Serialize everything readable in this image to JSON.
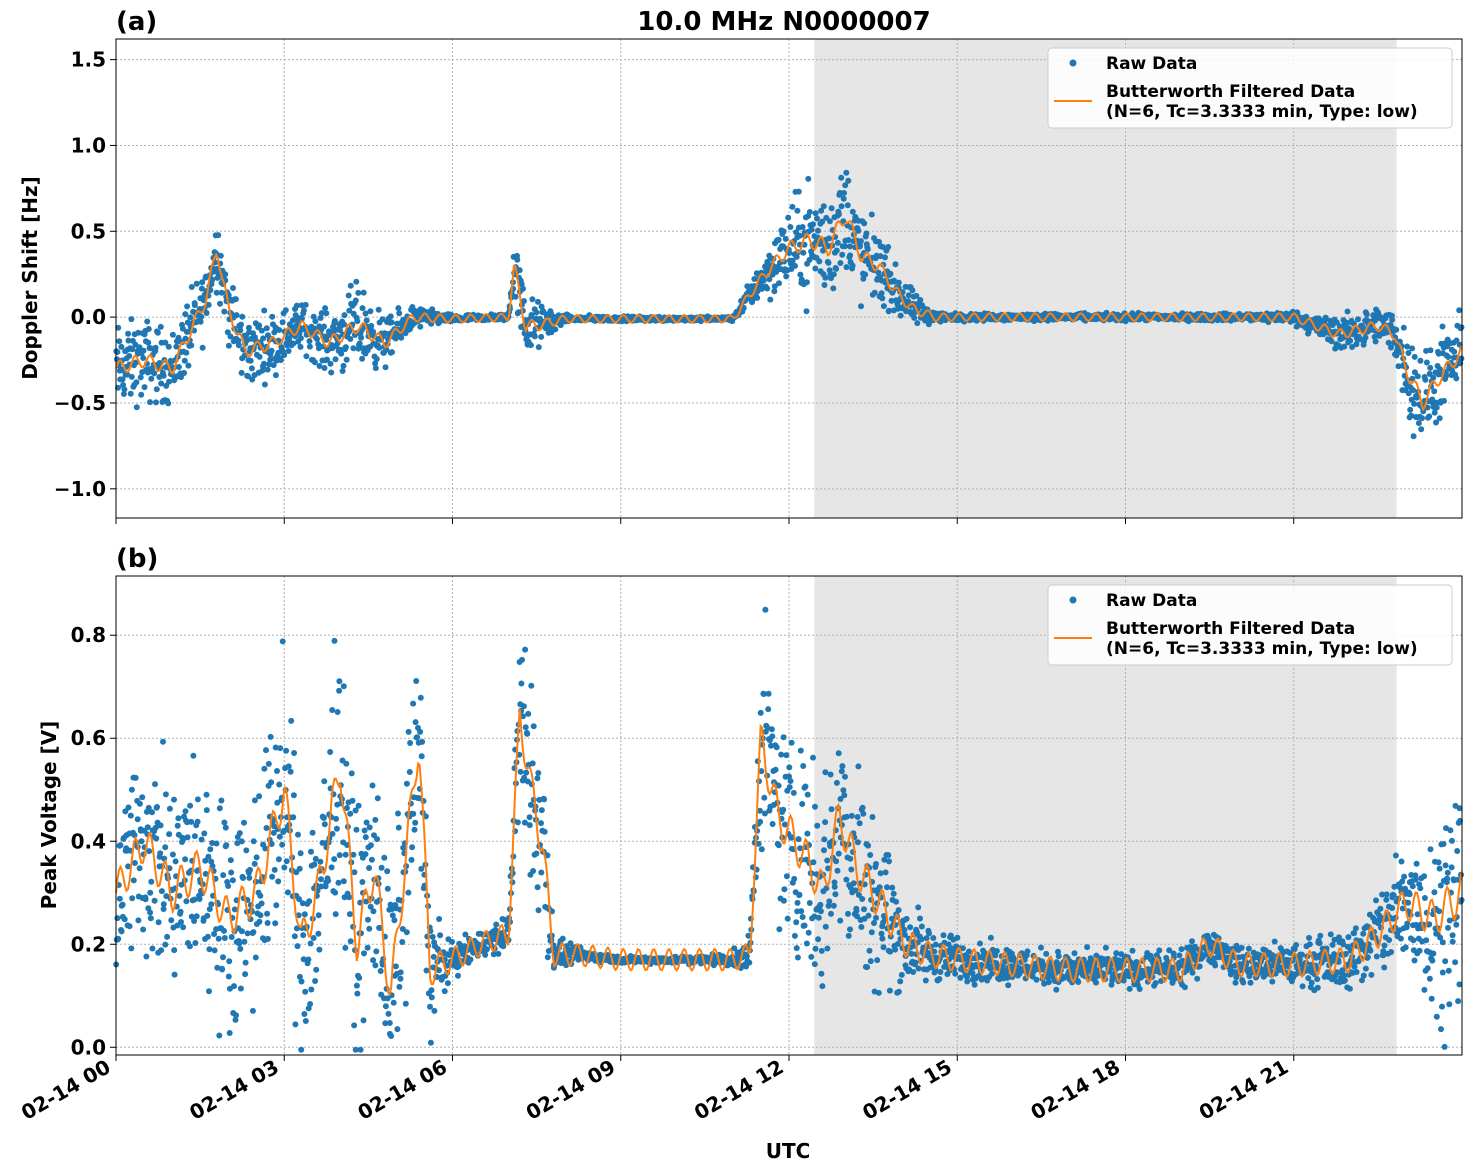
{
  "figure": {
    "title": "10.0 MHz N0000007",
    "xlabel": "UTC",
    "colors": {
      "raw": "#1f77b4",
      "filtered": "#ff7f0e",
      "shade": "#e6e6e6",
      "grid": "#b0b0b0"
    }
  },
  "chart_data": [
    {
      "panel_label": "(a)",
      "type": "scatter",
      "ylabel": "Doppler Shift [Hz]",
      "xlim": [
        "02-14 00:00",
        "02-15 00:00"
      ],
      "ylim": [
        -1.17,
        1.62
      ],
      "yticks": [
        "−1.0",
        "−0.5",
        "0.0",
        "0.5",
        "1.0",
        "1.5"
      ],
      "ytick_values": [
        -1.0,
        -0.5,
        0.0,
        0.5,
        1.0,
        1.5
      ],
      "xticks": [
        "02-14 00",
        "02-14 03",
        "02-14 06",
        "02-14 09",
        "02-14 12",
        "02-14 15",
        "02-14 18",
        "02-14 21"
      ],
      "xtick_hours": [
        0,
        3,
        6,
        9,
        12,
        15,
        18,
        21
      ],
      "shaded_span_utc": [
        "12:27",
        "22:50"
      ],
      "grid": true,
      "legend_position": "top-right",
      "legend": [
        "Raw Data",
        "Butterworth Filtered Data",
        "(N=6, Tc=3.3333 min, Type: low)"
      ],
      "series": [
        {
          "name": "Butterworth Filtered Data",
          "x_hours": [
            0,
            0.5,
            1,
            1.3,
            1.6,
            1.8,
            2.0,
            2.3,
            2.8,
            3.3,
            3.8,
            4.3,
            4.8,
            5.3,
            6,
            7,
            7.1,
            7.3,
            7.5,
            8,
            9,
            10,
            11,
            11.45,
            11.7,
            12.0,
            12.4,
            12.7,
            13.0,
            13.3,
            13.6,
            13.9,
            14.2,
            14.6,
            15,
            16,
            18,
            20,
            21,
            21.8,
            22.5,
            22.8,
            23.0,
            23.3,
            23.6,
            24
          ],
          "y": [
            -0.3,
            -0.25,
            -0.3,
            -0.1,
            0.1,
            0.4,
            0.05,
            -0.2,
            -0.15,
            -0.05,
            -0.15,
            -0.05,
            -0.15,
            0.0,
            -0.01,
            0.0,
            0.3,
            -0.05,
            -0.05,
            -0.01,
            -0.01,
            -0.01,
            -0.01,
            0.2,
            0.3,
            0.4,
            0.45,
            0.4,
            0.6,
            0.35,
            0.3,
            0.15,
            0.05,
            0.0,
            0.0,
            0.0,
            0.0,
            0.0,
            0.0,
            -0.1,
            -0.05,
            -0.1,
            -0.3,
            -0.5,
            -0.35,
            -0.2
          ]
        },
        {
          "name": "Raw Data",
          "x_hours": [
            0,
            0.5,
            1,
            1.3,
            1.6,
            1.8,
            2.0,
            2.3,
            2.8,
            3.3,
            3.8,
            4.3,
            4.8,
            5.3,
            6,
            7,
            7.1,
            7.3,
            7.5,
            8,
            9,
            10,
            11,
            11.45,
            11.7,
            12.0,
            12.4,
            12.7,
            13.0,
            13.3,
            13.6,
            13.9,
            14.2,
            14.6,
            15,
            16,
            18,
            20,
            21,
            21.8,
            22.5,
            22.8,
            23.0,
            23.3,
            23.6,
            24
          ],
          "y_spread": [
            0.35,
            0.35,
            0.3,
            0.3,
            0.3,
            0.3,
            0.3,
            0.3,
            0.25,
            0.2,
            0.25,
            0.35,
            0.2,
            0.1,
            0.03,
            0.03,
            0.25,
            0.3,
            0.2,
            0.03,
            0.02,
            0.02,
            0.02,
            0.15,
            0.25,
            0.35,
            0.5,
            0.45,
            0.5,
            0.4,
            0.3,
            0.2,
            0.15,
            0.05,
            0.03,
            0.03,
            0.03,
            0.03,
            0.05,
            0.15,
            0.15,
            0.2,
            0.35,
            0.4,
            0.35,
            0.3
          ]
        }
      ]
    },
    {
      "panel_label": "(b)",
      "type": "scatter",
      "ylabel": "Peak Voltage [V]",
      "xlim": [
        "02-14 00:00",
        "02-15 00:00"
      ],
      "ylim": [
        -0.015,
        0.915
      ],
      "yticks": [
        "0.0",
        "0.2",
        "0.4",
        "0.6",
        "0.8"
      ],
      "ytick_values": [
        0.0,
        0.2,
        0.4,
        0.6,
        0.8
      ],
      "xticks": [
        "02-14 00",
        "02-14 03",
        "02-14 06",
        "02-14 09",
        "02-14 12",
        "02-14 15",
        "02-14 18",
        "02-14 21"
      ],
      "xtick_hours": [
        0,
        3,
        6,
        9,
        12,
        15,
        18,
        21
      ],
      "shaded_span_utc": [
        "12:27",
        "22:50"
      ],
      "grid": true,
      "legend_position": "top-right",
      "legend": [
        "Raw Data",
        "Butterworth Filtered Data",
        "(N=6, Tc=3.3333 min, Type: low)"
      ],
      "series": [
        {
          "name": "Butterworth Filtered Data",
          "x_hours": [
            0,
            0.5,
            1,
            1.5,
            2,
            2.5,
            3.0,
            3.3,
            3.6,
            4.0,
            4.3,
            4.6,
            4.9,
            5.1,
            5.4,
            5.6,
            6.0,
            6.5,
            7.0,
            7.2,
            7.4,
            7.6,
            7.8,
            8.2,
            9,
            10,
            11,
            11.3,
            11.5,
            11.8,
            12.1,
            12.4,
            12.6,
            12.9,
            13.2,
            13.5,
            13.8,
            14.1,
            14.5,
            15,
            16,
            17,
            18,
            19,
            19.5,
            20,
            21,
            22,
            22.5,
            23,
            23.5,
            24
          ],
          "y": [
            0.3,
            0.4,
            0.3,
            0.35,
            0.25,
            0.3,
            0.5,
            0.2,
            0.3,
            0.55,
            0.2,
            0.35,
            0.1,
            0.3,
            0.6,
            0.15,
            0.17,
            0.2,
            0.22,
            0.65,
            0.5,
            0.4,
            0.18,
            0.18,
            0.17,
            0.17,
            0.17,
            0.18,
            0.6,
            0.45,
            0.4,
            0.35,
            0.3,
            0.45,
            0.35,
            0.3,
            0.25,
            0.2,
            0.18,
            0.17,
            0.16,
            0.15,
            0.15,
            0.15,
            0.2,
            0.16,
            0.16,
            0.17,
            0.22,
            0.28,
            0.25,
            0.3
          ]
        },
        {
          "name": "Raw Data",
          "x_hours": [
            0,
            0.5,
            1,
            1.5,
            2,
            2.5,
            3.0,
            3.3,
            3.6,
            4.0,
            4.3,
            4.6,
            4.9,
            5.1,
            5.4,
            5.6,
            6.0,
            6.5,
            7.0,
            7.2,
            7.4,
            7.6,
            7.8,
            8.2,
            9,
            10,
            11,
            11.3,
            11.5,
            11.8,
            12.1,
            12.4,
            12.6,
            12.9,
            13.2,
            13.5,
            13.8,
            14.1,
            14.5,
            15,
            16,
            17,
            18,
            19,
            19.5,
            20,
            21,
            22,
            22.5,
            23,
            23.5,
            24
          ],
          "y_spread": [
            0.25,
            0.3,
            0.3,
            0.3,
            0.3,
            0.3,
            0.35,
            0.3,
            0.35,
            0.35,
            0.35,
            0.35,
            0.3,
            0.3,
            0.3,
            0.2,
            0.04,
            0.04,
            0.05,
            0.25,
            0.3,
            0.3,
            0.05,
            0.02,
            0.01,
            0.01,
            0.02,
            0.05,
            0.3,
            0.3,
            0.3,
            0.3,
            0.3,
            0.3,
            0.3,
            0.25,
            0.2,
            0.12,
            0.08,
            0.06,
            0.05,
            0.05,
            0.05,
            0.05,
            0.05,
            0.05,
            0.06,
            0.08,
            0.12,
            0.2,
            0.25,
            0.35
          ]
        }
      ]
    }
  ]
}
